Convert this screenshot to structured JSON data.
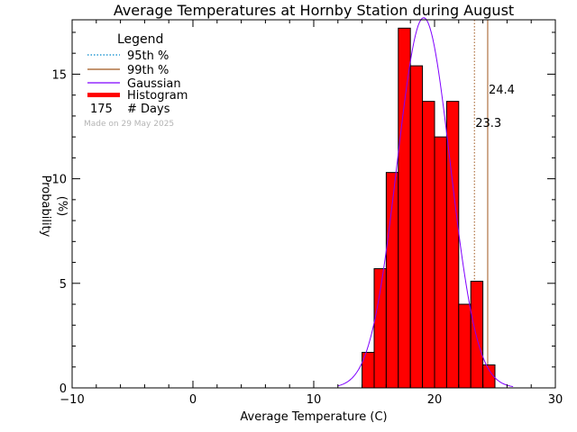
{
  "chart_data": {
    "type": "bar",
    "title": "Average Temperatures at Hornby Station during August",
    "xlabel": "Average Temperature (C)",
    "ylabel_line1": "Probability",
    "ylabel_line2": "(%)",
    "xlim": [
      -10,
      30
    ],
    "ylim": [
      0,
      17.6
    ],
    "x_ticks": [
      -10,
      0,
      10,
      20,
      30
    ],
    "x_tick_labels": [
      "−10",
      "0",
      "10",
      "20",
      "30"
    ],
    "y_ticks": [
      0,
      5,
      10,
      15
    ],
    "y_tick_labels": [
      "0",
      "5",
      "10",
      "15"
    ],
    "grid": false,
    "legend_position": "top-left",
    "histogram": {
      "bin_width": 1,
      "bins": [
        {
          "x0": 14,
          "x1": 15,
          "value": 1.7
        },
        {
          "x0": 15,
          "x1": 16,
          "value": 5.7
        },
        {
          "x0": 16,
          "x1": 17,
          "value": 10.3
        },
        {
          "x0": 17,
          "x1": 18,
          "value": 17.2
        },
        {
          "x0": 18,
          "x1": 19,
          "value": 15.4
        },
        {
          "x0": 19,
          "x1": 20,
          "value": 13.7
        },
        {
          "x0": 20,
          "x1": 21,
          "value": 12.0
        },
        {
          "x0": 21,
          "x1": 22,
          "value": 13.7
        },
        {
          "x0": 22,
          "x1": 23,
          "value": 4.0
        },
        {
          "x0": 23,
          "x1": 24,
          "value": 5.1
        },
        {
          "x0": 24,
          "x1": 25,
          "value": 1.1
        }
      ]
    },
    "gaussian": {
      "mean": 19.1,
      "sd": 2.2,
      "peak": 17.7,
      "x_range": [
        12.0,
        26.5
      ]
    },
    "percentiles": {
      "p95": {
        "value": 23.3,
        "label": "23.3"
      },
      "p99": {
        "value": 24.4,
        "label": "24.4"
      }
    },
    "legend": {
      "title": "Legend",
      "items": [
        {
          "label": "95th %"
        },
        {
          "label": "99th %"
        },
        {
          "label": "Gaussian"
        },
        {
          "label": "Histogram"
        }
      ],
      "days_count": "175",
      "days_label": "# Days"
    },
    "made_on": "Made on 29 May 2025",
    "colors": {
      "histogram": "#ff0000",
      "p95": "#0088cc",
      "p99": "#a0581e",
      "gaussian": "#7f00ff",
      "p95_label": "#1a86c0",
      "p99_label": "#b0651e",
      "made_on": "#b4b4b4"
    }
  }
}
